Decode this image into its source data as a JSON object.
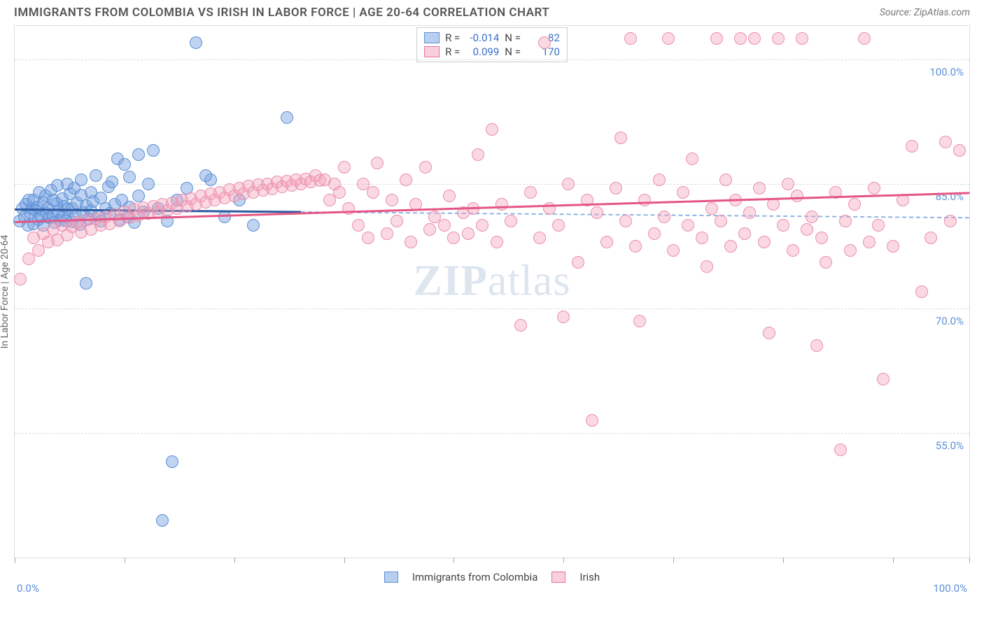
{
  "header": {
    "title": "IMMIGRANTS FROM COLOMBIA VS IRISH IN LABOR FORCE | AGE 20-64 CORRELATION CHART",
    "source": "Source: ZipAtlas.com"
  },
  "axes": {
    "y_label": "In Labor Force | Age 20-64",
    "x_min": 0,
    "x_max": 100,
    "y_min": 40,
    "y_max": 104,
    "y_ticks": [
      55.0,
      70.0,
      85.0,
      100.0
    ],
    "y_tick_labels": [
      "55.0%",
      "70.0%",
      "85.0%",
      "100.0%"
    ],
    "x_first_label": "0.0%",
    "x_last_label": "100.0%",
    "x_tick_positions": [
      0,
      11.5,
      23,
      34.5,
      46,
      57.5,
      69,
      80.5,
      92,
      100
    ]
  },
  "style": {
    "grid_color": "#dddddd",
    "tick_label_color": "#5b8fd6",
    "background_color": "#ffffff",
    "marker_radius": 9,
    "marker_stroke_width": 1
  },
  "series": [
    {
      "name": "Immigrants from Colombia",
      "fill": "rgba(115,160,225,0.45)",
      "stroke": "#5b8fd6",
      "swatch_fill": "rgba(115,160,225,0.5)",
      "swatch_border": "#5b8fd6",
      "R": "-0.014",
      "N": "82",
      "trend_solid": {
        "x1": 0,
        "y1": 82.0,
        "x2": 30,
        "y2": 81.7,
        "color": "#2c5aa0",
        "width": 3
      },
      "trend_dash": {
        "x1": 30,
        "y1": 81.7,
        "x2": 100,
        "y2": 81.0,
        "color": "#8fb4e6"
      },
      "points": [
        [
          0.5,
          80.5
        ],
        [
          0.8,
          82
        ],
        [
          1.0,
          81
        ],
        [
          1.2,
          82.5
        ],
        [
          1.4,
          80
        ],
        [
          1.5,
          83
        ],
        [
          1.6,
          81.5
        ],
        [
          1.8,
          82
        ],
        [
          2.0,
          80.2
        ],
        [
          2.0,
          83.0
        ],
        [
          2.2,
          81.8
        ],
        [
          2.4,
          82.2
        ],
        [
          2.5,
          80.7
        ],
        [
          2.6,
          84.0
        ],
        [
          2.8,
          81.0
        ],
        [
          3.0,
          82.8
        ],
        [
          3.0,
          80.0
        ],
        [
          3.2,
          83.5
        ],
        [
          3.4,
          81.4
        ],
        [
          3.5,
          82.0
        ],
        [
          3.6,
          80.9
        ],
        [
          3.8,
          84.2
        ],
        [
          4.0,
          81.2
        ],
        [
          4.0,
          83.0
        ],
        [
          4.2,
          80.3
        ],
        [
          4.4,
          82.6
        ],
        [
          4.5,
          84.8
        ],
        [
          4.6,
          81.7
        ],
        [
          4.8,
          80.6
        ],
        [
          5.0,
          83.2
        ],
        [
          5.0,
          81.0
        ],
        [
          5.2,
          82.3
        ],
        [
          5.4,
          80.5
        ],
        [
          5.5,
          85.0
        ],
        [
          5.6,
          81.9
        ],
        [
          5.8,
          83.8
        ],
        [
          6.0,
          82.0
        ],
        [
          6.0,
          80.4
        ],
        [
          6.2,
          84.5
        ],
        [
          6.4,
          81.3
        ],
        [
          6.5,
          82.7
        ],
        [
          6.8,
          80.1
        ],
        [
          7.0,
          83.6
        ],
        [
          7.0,
          85.5
        ],
        [
          7.2,
          81.5
        ],
        [
          7.5,
          82.4
        ],
        [
          7.8,
          80.8
        ],
        [
          8.0,
          84.0
        ],
        [
          8.0,
          81.8
        ],
        [
          8.2,
          82.9
        ],
        [
          8.5,
          86.0
        ],
        [
          8.8,
          81.2
        ],
        [
          9.0,
          83.3
        ],
        [
          9.0,
          80.5
        ],
        [
          9.5,
          82.0
        ],
        [
          9.8,
          84.6
        ],
        [
          10.0,
          81.4
        ],
        [
          10.2,
          85.2
        ],
        [
          10.5,
          82.5
        ],
        [
          10.8,
          88.0
        ],
        [
          11.0,
          80.7
        ],
        [
          11.2,
          83.0
        ],
        [
          11.5,
          87.3
        ],
        [
          11.8,
          81.0
        ],
        [
          12.0,
          82.2
        ],
        [
          12.0,
          85.8
        ],
        [
          12.5,
          80.3
        ],
        [
          13.0,
          83.5
        ],
        [
          13.0,
          88.5
        ],
        [
          13.5,
          81.6
        ],
        [
          14.0,
          85.0
        ],
        [
          14.5,
          89.0
        ],
        [
          15.0,
          82.0
        ],
        [
          16.0,
          80.5
        ],
        [
          17.0,
          83.0
        ],
        [
          18.0,
          84.5
        ],
        [
          19.0,
          102.0
        ],
        [
          20.5,
          85.5
        ],
        [
          22.0,
          81.0
        ],
        [
          23.5,
          83.0
        ],
        [
          25.0,
          80.0
        ],
        [
          28.5,
          93.0
        ],
        [
          7.5,
          73.0
        ],
        [
          16.5,
          51.5
        ],
        [
          15.5,
          44.5
        ],
        [
          20.0,
          86.0
        ]
      ]
    },
    {
      "name": "Irish",
      "fill": "rgba(245,160,185,0.40)",
      "stroke": "#e98fad",
      "swatch_fill": "rgba(245,160,185,0.5)",
      "swatch_border": "#e87098",
      "R": "0.099",
      "N": "170",
      "trend_solid": {
        "x1": 0,
        "y1": 80.5,
        "x2": 100,
        "y2": 84.0,
        "color": "#e55585",
        "width": 3
      },
      "points": [
        [
          0.6,
          73.5
        ],
        [
          1.5,
          76.0
        ],
        [
          2.0,
          78.5
        ],
        [
          2.5,
          77.0
        ],
        [
          3.0,
          79.0
        ],
        [
          3.5,
          78.0
        ],
        [
          4.0,
          79.5
        ],
        [
          4.5,
          78.2
        ],
        [
          5.0,
          80.0
        ],
        [
          5.5,
          78.8
        ],
        [
          6.0,
          79.8
        ],
        [
          6.5,
          80.3
        ],
        [
          7.0,
          79.2
        ],
        [
          7.5,
          80.6
        ],
        [
          8.0,
          79.5
        ],
        [
          8.5,
          80.8
        ],
        [
          9.0,
          80.0
        ],
        [
          9.5,
          81.0
        ],
        [
          10.0,
          80.2
        ],
        [
          10.5,
          81.3
        ],
        [
          11.0,
          80.5
        ],
        [
          11.5,
          81.6
        ],
        [
          12.0,
          80.9
        ],
        [
          12.5,
          81.9
        ],
        [
          13.0,
          81.2
        ],
        [
          13.5,
          82.1
        ],
        [
          14.0,
          81.4
        ],
        [
          14.5,
          82.3
        ],
        [
          15.0,
          81.6
        ],
        [
          15.5,
          82.5
        ],
        [
          16.0,
          81.8
        ],
        [
          16.5,
          82.7
        ],
        [
          17.0,
          82.0
        ],
        [
          17.5,
          83.0
        ],
        [
          18.0,
          82.3
        ],
        [
          18.5,
          83.2
        ],
        [
          19.0,
          82.5
        ],
        [
          19.5,
          83.5
        ],
        [
          20.0,
          82.8
        ],
        [
          20.5,
          83.8
        ],
        [
          21.0,
          83.0
        ],
        [
          21.5,
          84.0
        ],
        [
          22.0,
          83.3
        ],
        [
          22.5,
          84.3
        ],
        [
          23.0,
          83.5
        ],
        [
          23.5,
          84.5
        ],
        [
          24.0,
          83.8
        ],
        [
          24.5,
          84.7
        ],
        [
          25.0,
          84.0
        ],
        [
          25.5,
          84.9
        ],
        [
          26.0,
          84.2
        ],
        [
          26.5,
          85.0
        ],
        [
          27.0,
          84.4
        ],
        [
          27.5,
          85.2
        ],
        [
          28.0,
          84.6
        ],
        [
          28.5,
          85.3
        ],
        [
          29.0,
          84.8
        ],
        [
          29.5,
          85.5
        ],
        [
          30.0,
          85.0
        ],
        [
          30.5,
          85.6
        ],
        [
          31.0,
          85.2
        ],
        [
          31.5,
          86.0
        ],
        [
          32.0,
          85.4
        ],
        [
          32.5,
          85.5
        ],
        [
          33.0,
          83.0
        ],
        [
          33.5,
          85.0
        ],
        [
          34.0,
          84.0
        ],
        [
          34.5,
          87.0
        ],
        [
          35.0,
          82.0
        ],
        [
          36.0,
          80.0
        ],
        [
          36.5,
          85.0
        ],
        [
          37.0,
          78.5
        ],
        [
          37.5,
          84.0
        ],
        [
          38.0,
          87.5
        ],
        [
          39.0,
          79.0
        ],
        [
          39.5,
          83.0
        ],
        [
          40.0,
          80.5
        ],
        [
          41.0,
          85.5
        ],
        [
          41.5,
          78.0
        ],
        [
          42.0,
          82.5
        ],
        [
          43.0,
          87.0
        ],
        [
          43.5,
          79.5
        ],
        [
          44.0,
          81.0
        ],
        [
          45.0,
          80.0
        ],
        [
          45.5,
          83.5
        ],
        [
          46.0,
          78.5
        ],
        [
          47.0,
          81.5
        ],
        [
          47.5,
          79.0
        ],
        [
          48.0,
          82.0
        ],
        [
          48.5,
          88.5
        ],
        [
          49.0,
          80.0
        ],
        [
          50.0,
          91.5
        ],
        [
          50.5,
          78.0
        ],
        [
          51.0,
          82.5
        ],
        [
          52.0,
          80.5
        ],
        [
          53.0,
          68.0
        ],
        [
          54.0,
          84.0
        ],
        [
          55.0,
          78.5
        ],
        [
          55.5,
          102.0
        ],
        [
          56.0,
          82.0
        ],
        [
          57.0,
          80.0
        ],
        [
          57.5,
          69.0
        ],
        [
          58.0,
          85.0
        ],
        [
          59.0,
          75.5
        ],
        [
          60.0,
          83.0
        ],
        [
          60.5,
          56.5
        ],
        [
          61.0,
          81.5
        ],
        [
          62.0,
          78.0
        ],
        [
          63.0,
          84.5
        ],
        [
          63.5,
          90.5
        ],
        [
          64.0,
          80.5
        ],
        [
          64.5,
          102.5
        ],
        [
          65.0,
          77.5
        ],
        [
          65.5,
          68.5
        ],
        [
          66.0,
          83.0
        ],
        [
          67.0,
          79.0
        ],
        [
          67.5,
          85.5
        ],
        [
          68.0,
          81.0
        ],
        [
          68.5,
          102.5
        ],
        [
          69.0,
          77.0
        ],
        [
          70.0,
          84.0
        ],
        [
          70.5,
          80.0
        ],
        [
          71.0,
          88.0
        ],
        [
          72.0,
          78.5
        ],
        [
          72.5,
          75.0
        ],
        [
          73.0,
          82.0
        ],
        [
          73.5,
          102.5
        ],
        [
          74.0,
          80.5
        ],
        [
          74.5,
          85.5
        ],
        [
          75.0,
          77.5
        ],
        [
          75.5,
          83.0
        ],
        [
          76.0,
          102.5
        ],
        [
          76.5,
          79.0
        ],
        [
          77.0,
          81.5
        ],
        [
          77.5,
          102.5
        ],
        [
          78.0,
          84.5
        ],
        [
          78.5,
          78.0
        ],
        [
          79.0,
          67.0
        ],
        [
          79.5,
          82.5
        ],
        [
          80.0,
          102.5
        ],
        [
          80.5,
          80.0
        ],
        [
          81.0,
          85.0
        ],
        [
          81.5,
          77.0
        ],
        [
          82.0,
          83.5
        ],
        [
          82.5,
          102.5
        ],
        [
          83.0,
          79.5
        ],
        [
          83.5,
          81.0
        ],
        [
          84.0,
          65.5
        ],
        [
          84.5,
          78.5
        ],
        [
          85.0,
          75.5
        ],
        [
          86.0,
          84.0
        ],
        [
          86.5,
          53.0
        ],
        [
          87.0,
          80.5
        ],
        [
          87.5,
          77.0
        ],
        [
          88.0,
          82.5
        ],
        [
          89.0,
          102.5
        ],
        [
          89.5,
          78.0
        ],
        [
          90.0,
          84.5
        ],
        [
          90.5,
          80.0
        ],
        [
          91.0,
          61.5
        ],
        [
          92.0,
          77.5
        ],
        [
          93.0,
          83.0
        ],
        [
          94.0,
          89.5
        ],
        [
          96.0,
          78.5
        ],
        [
          97.5,
          90.0
        ],
        [
          99.0,
          89.0
        ],
        [
          98.0,
          80.5
        ],
        [
          95.0,
          72.0
        ]
      ]
    }
  ],
  "legend": {
    "items": [
      "Immigrants from Colombia",
      "Irish"
    ]
  },
  "watermark": {
    "prefix": "ZIP",
    "suffix": "atlas"
  }
}
